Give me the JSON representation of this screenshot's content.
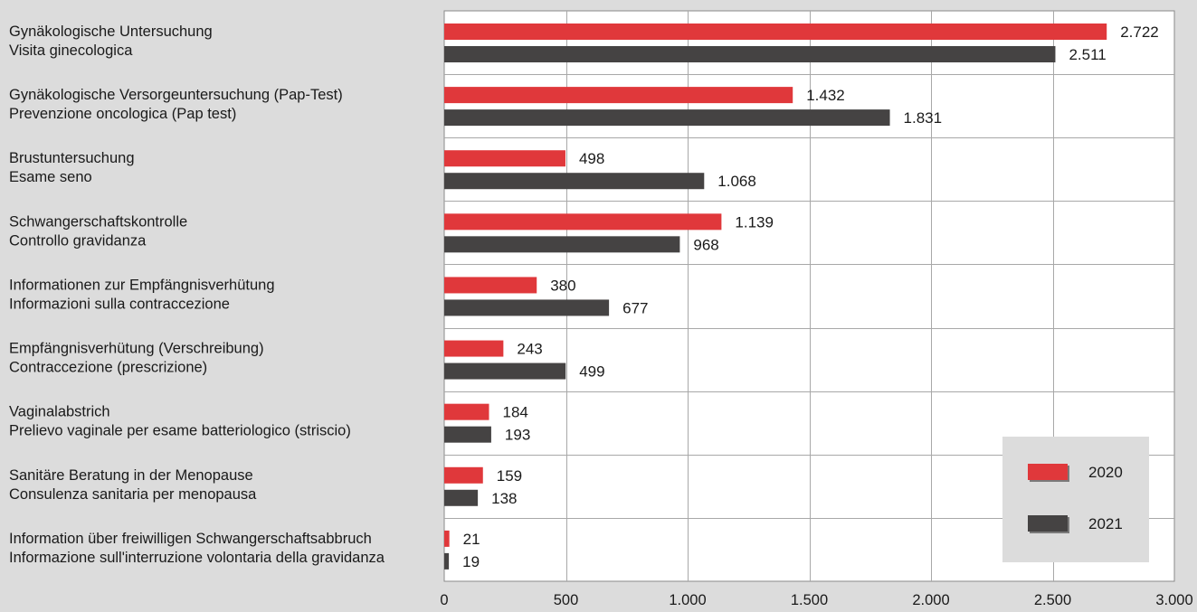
{
  "chart_data": {
    "type": "bar",
    "orientation": "horizontal",
    "categories": [
      [
        "Gynäkologische Untersuchung",
        "Visita ginecologica"
      ],
      [
        "Gynäkologische Versorgeuntersuchung (Pap-Test)",
        "Prevenzione oncologica (Pap test)"
      ],
      [
        "Brustuntersuchung",
        "Esame seno"
      ],
      [
        "Schwangerschaftskontrolle",
        "Controllo gravidanza"
      ],
      [
        "Informationen zur Empfängnisverhütung",
        "Informazioni sulla contraccezione"
      ],
      [
        "Empfängnisverhütung (Verschreibung)",
        "Contraccezione (prescrizione)"
      ],
      [
        "Vaginalabstrich",
        "Prelievo vaginale per esame batteriologico (striscio)"
      ],
      [
        "Sanitäre Beratung in der Menopause",
        "Consulenza sanitaria per menopausa"
      ],
      [
        "Information über freiwilligen Schwangerschaftsabbruch",
        "Informazione sull'interruzione volontaria della gravidanza"
      ]
    ],
    "series": [
      {
        "name": "2020",
        "color": "#e0383b",
        "values": [
          2722,
          1432,
          498,
          1139,
          380,
          243,
          184,
          159,
          21
        ],
        "labels": [
          "2.722",
          "1.432",
          "498",
          "1.139",
          "380",
          "243",
          "184",
          "159",
          "21"
        ]
      },
      {
        "name": "2021",
        "color": "#454343",
        "values": [
          2511,
          1831,
          1068,
          968,
          677,
          499,
          193,
          138,
          19
        ],
        "labels": [
          "2.511",
          "1.831",
          "1.068",
          "968",
          "677",
          "499",
          "193",
          "138",
          "19"
        ]
      }
    ],
    "xlim": [
      0,
      3000
    ],
    "xticks": [
      0,
      500,
      1000,
      1500,
      2000,
      2500,
      3000
    ],
    "xtick_labels": [
      "0",
      "500",
      "1.000",
      "1.500",
      "2.000",
      "2.500",
      "3.000"
    ],
    "grid": true,
    "legend_position": "bottom-right",
    "title": "",
    "xlabel": "",
    "ylabel": ""
  }
}
